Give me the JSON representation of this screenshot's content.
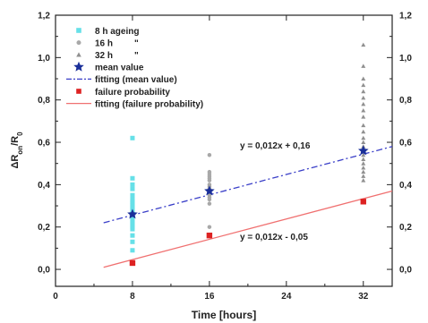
{
  "chart_data": {
    "type": "scatter",
    "xlabel": "Time [hours]",
    "ylabel": "ΔR",
    "ylabel_sub": "on",
    "ylabel_den": "/R",
    "ylabel_den_sub": "0",
    "xlim": [
      0,
      35
    ],
    "ylim": [
      -0.08,
      1.2
    ],
    "xticks": [
      "0",
      "8",
      "16",
      "24",
      "32"
    ],
    "xtick_values": [
      0,
      8,
      16,
      24,
      32
    ],
    "yticks": [
      "0,0",
      "0,2",
      "0,4",
      "0,6",
      "0,8",
      "1,0",
      "1,2"
    ],
    "ytick_values": [
      0.0,
      0.2,
      0.4,
      0.6,
      0.8,
      1.0,
      1.2
    ],
    "legend_position": "top-left",
    "legend": [
      {
        "label": "8 h ageing",
        "kind": "marker",
        "symbol": "square",
        "color": "#66e0e8"
      },
      {
        "label": "16 h",
        "ditto": "\"",
        "kind": "marker",
        "symbol": "circle",
        "color": "#a8a8a8"
      },
      {
        "label": "32 h",
        "ditto": "\"",
        "kind": "marker",
        "symbol": "triangle",
        "color": "#909090"
      },
      {
        "label": "mean value",
        "kind": "marker",
        "symbol": "star",
        "color": "#1a2f99"
      },
      {
        "label": "fitting (mean value)",
        "kind": "line",
        "dash": "dashdot",
        "color": "#3a3fc8"
      },
      {
        "label": "failure probability",
        "kind": "marker",
        "symbol": "square",
        "color": "#dd2222"
      },
      {
        "label": "fitting (failure probability)",
        "kind": "line",
        "dash": "solid",
        "color": "#f07070"
      }
    ],
    "series": [
      {
        "name": "8 h ageing",
        "color": "#66e0e8",
        "x": [
          8,
          8,
          8,
          8,
          8,
          8,
          8,
          8,
          8,
          8,
          8,
          8,
          8,
          8,
          8,
          8,
          8,
          8,
          8,
          8,
          8,
          8,
          8
        ],
        "y": [
          0.62,
          0.43,
          0.4,
          0.38,
          0.35,
          0.33,
          0.32,
          0.31,
          0.3,
          0.29,
          0.28,
          0.27,
          0.26,
          0.25,
          0.24,
          0.23,
          0.22,
          0.21,
          0.2,
          0.19,
          0.16,
          0.13,
          0.09
        ]
      },
      {
        "name": "16 h",
        "color": "#a8a8a8",
        "x": [
          16,
          16,
          16,
          16,
          16,
          16,
          16,
          16,
          16,
          16,
          16,
          16,
          16,
          16,
          16
        ],
        "y": [
          0.54,
          0.46,
          0.45,
          0.44,
          0.43,
          0.42,
          0.4,
          0.39,
          0.38,
          0.37,
          0.35,
          0.34,
          0.33,
          0.31,
          0.2
        ]
      },
      {
        "name": "32 h",
        "color": "#909090",
        "x": [
          32,
          32,
          32,
          32,
          32,
          32,
          32,
          32,
          32,
          32,
          32,
          32,
          32,
          32,
          32,
          32,
          32,
          32,
          32,
          32,
          32,
          32
        ],
        "y": [
          1.06,
          0.96,
          0.9,
          0.87,
          0.84,
          0.81,
          0.78,
          0.75,
          0.72,
          0.68,
          0.65,
          0.62,
          0.6,
          0.58,
          0.56,
          0.54,
          0.52,
          0.5,
          0.48,
          0.46,
          0.44,
          0.42
        ]
      },
      {
        "name": "mean value",
        "color": "#1a2f99",
        "x": [
          8,
          16,
          32
        ],
        "y": [
          0.26,
          0.37,
          0.56
        ]
      },
      {
        "name": "failure probability",
        "color": "#dd2222",
        "x": [
          8,
          16,
          32
        ],
        "y": [
          0.03,
          0.16,
          0.32
        ]
      }
    ],
    "fits": [
      {
        "name": "fitting (mean value)",
        "slope": 0.012,
        "intercept": 0.16,
        "x_range": [
          5,
          35
        ],
        "color": "#3a3fc8",
        "dash": "dashdot",
        "equation": "y = 0,012x + 0,16"
      },
      {
        "name": "fitting (failure probability)",
        "slope": 0.012,
        "intercept": -0.05,
        "x_range": [
          5,
          35
        ],
        "color": "#f07070",
        "dash": "solid",
        "equation": "y = 0,012x - 0,05"
      }
    ]
  }
}
